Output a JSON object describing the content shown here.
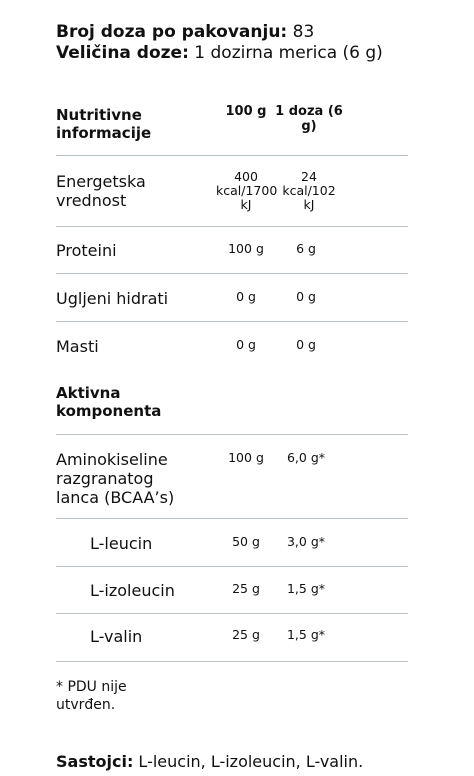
{
  "header": {
    "servings_label": "Broj doza po pakovanju:",
    "servings_value": " 83",
    "size_label": "Veličina doze:",
    "size_value": " 1 dozirna merica (6 g)"
  },
  "table": {
    "heading": "Nutritivne informacije",
    "col1": "100 g",
    "col2": "1 doza (6 g)",
    "rows": [
      {
        "name": "Energetska vrednost",
        "v1": "400 kcal/1700 kJ",
        "v2": "24 kcal/102 kJ"
      },
      {
        "name": "Proteini",
        "v1": "100 g",
        "v2": "6 g"
      },
      {
        "name": "Ugljeni hidrati",
        "v1": "0 g",
        "v2": "0 g"
      },
      {
        "name": "Masti",
        "v1": "0 g",
        "v2": "0 g"
      }
    ],
    "active_heading": "Aktivna komponenta",
    "active_rows": [
      {
        "name": "Aminokiseline razgranatog lanca (BCAA’s)",
        "v1": "100 g",
        "v2": "6,0 g*"
      },
      {
        "name": "L-leucin",
        "v1": "50 g",
        "v2": "3,0 g*"
      },
      {
        "name": "L-izoleucin",
        "v1": "25 g",
        "v2": "1,5 g*"
      },
      {
        "name": "L-valin",
        "v1": "25 g",
        "v2": "1,5 g*"
      }
    ]
  },
  "footnote": "* PDU nije utvrđen.",
  "ingredients": {
    "label": "Sastojci:",
    "value": " L-leucin, L-izoleucin, L-valin."
  }
}
